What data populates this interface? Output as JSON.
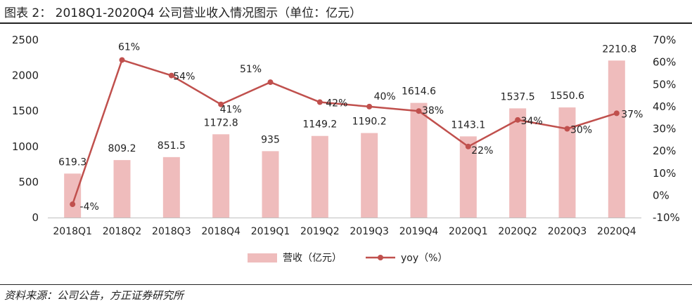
{
  "header": {
    "title": "图表 2：  2018Q1-2020Q4 公司营业收入情况图示（单位：亿元）"
  },
  "footer": {
    "source": "资料来源：公司公告，方正证券研究所"
  },
  "colors": {
    "bar": "#efbcbc",
    "line": "#c0504d",
    "axis": "#222222"
  },
  "chart_data": {
    "type": "bar",
    "categories": [
      "2018Q1",
      "2018Q2",
      "2018Q3",
      "2018Q4",
      "2019Q1",
      "2019Q2",
      "2019Q3",
      "2019Q4",
      "2020Q1",
      "2020Q2",
      "2020Q3",
      "2020Q4"
    ],
    "series": [
      {
        "name": "营收（亿元）",
        "type": "bar",
        "axis": "left",
        "values": [
          619.3,
          809.2,
          851.5,
          1172.8,
          935,
          1149.2,
          1190.2,
          1614.6,
          1143.1,
          1537.5,
          1550.6,
          2210.8
        ],
        "labels": [
          "619.3",
          "809.2",
          "851.5",
          "1172.8",
          "935",
          "1149.2",
          "1190.2",
          "1614.6",
          "1143.1",
          "1537.5",
          "1550.6",
          "2210.8"
        ]
      },
      {
        "name": "yoy（%）",
        "type": "line",
        "axis": "right",
        "values": [
          -4,
          61,
          54,
          41,
          51,
          42,
          40,
          38,
          22,
          34,
          30,
          37
        ],
        "labels": [
          "-4%",
          "61%",
          "54%",
          "41%",
          "51%",
          "42%",
          "40%",
          "38%",
          "22%",
          "34%",
          "30%",
          "37%"
        ]
      }
    ],
    "ylim_left": [
      0,
      2500
    ],
    "yticks_left": [
      "0",
      "500",
      "1000",
      "1500",
      "2000",
      "2500"
    ],
    "ylim_right": [
      -10,
      70
    ],
    "yticks_right": [
      "-10%",
      "0%",
      "10%",
      "20%",
      "30%",
      "40%",
      "50%",
      "60%",
      "70%"
    ],
    "legend_position": "bottom",
    "grid": false
  }
}
